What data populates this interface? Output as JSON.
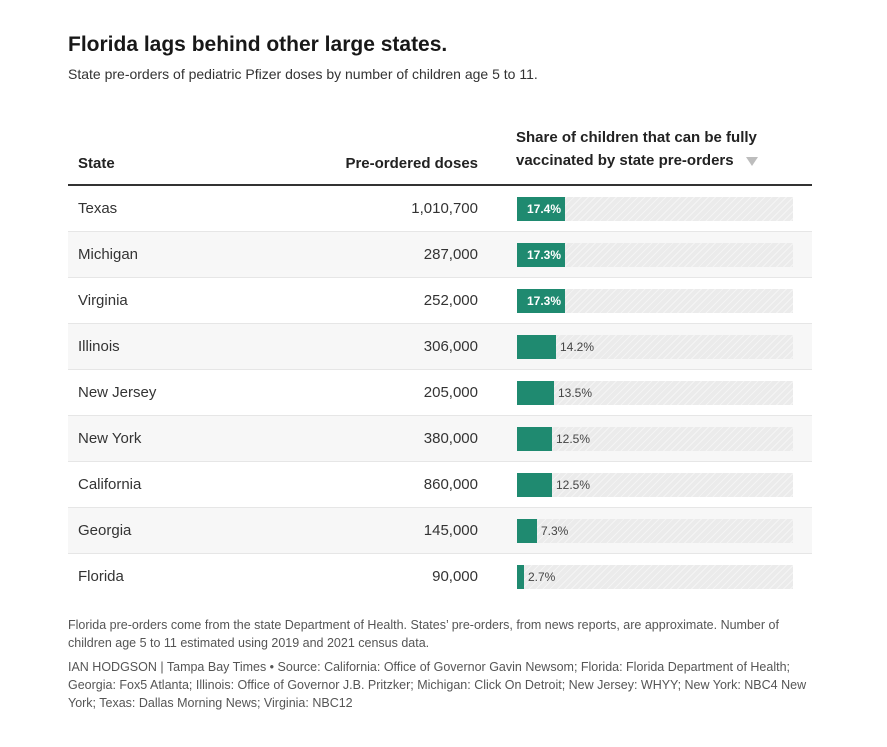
{
  "title": "Florida lags behind other large states.",
  "subtitle": "State pre-orders of pediatric Pfizer doses by number of children age 5 to 11.",
  "table": {
    "headers": {
      "state": "State",
      "doses": "Pre-ordered doses",
      "share": "Share of children that can be fully vaccinated by state pre-orders"
    }
  },
  "chart_data": {
    "type": "table",
    "title": "Florida lags behind other large states.",
    "subtitle": "State pre-orders of pediatric Pfizer doses by number of children age 5 to 11.",
    "columns": [
      "State",
      "Pre-ordered doses",
      "Share of children that can be fully vaccinated by state pre-orders"
    ],
    "rows": [
      {
        "state": "Texas",
        "doses": "1,010,700",
        "share": 17.4,
        "share_label": "17.4%"
      },
      {
        "state": "Michigan",
        "doses": "287,000",
        "share": 17.3,
        "share_label": "17.3%"
      },
      {
        "state": "Virginia",
        "doses": "252,000",
        "share": 17.3,
        "share_label": "17.3%"
      },
      {
        "state": "Illinois",
        "doses": "306,000",
        "share": 14.2,
        "share_label": "14.2%"
      },
      {
        "state": "New Jersey",
        "doses": "205,000",
        "share": 13.5,
        "share_label": "13.5%"
      },
      {
        "state": "New York",
        "doses": "380,000",
        "share": 12.5,
        "share_label": "12.5%"
      },
      {
        "state": "California",
        "doses": "860,000",
        "share": 12.5,
        "share_label": "12.5%"
      },
      {
        "state": "Georgia",
        "doses": "145,000",
        "share": 7.3,
        "share_label": "7.3%"
      },
      {
        "state": "Florida",
        "doses": "90,000",
        "share": 2.7,
        "share_label": "2.7%"
      }
    ],
    "share_max": 100,
    "sorted_by": "share",
    "sort_direction": "descending",
    "colors": {
      "bar": "#1f8a70",
      "track": "#ebebeb"
    }
  },
  "footer": {
    "note": "Florida pre-orders come from the state Department of Health. States’ pre-orders, from news reports, are approximate. Number of children age 5 to 11 estimated using 2019 and 2021 census data.",
    "credit": "IAN HODGSON | Tampa Bay Times • Source: California: Office of Governor Gavin Newsom; Florida: Florida Department of Health; Georgia: Fox5 Atlanta; Illinois: Office of Governor J.B. Pritzker; Michigan: Click On Detroit; New Jersey: WHYY; New York: NBC4 New York; Texas: Dallas Morning News; Virginia: NBC12"
  }
}
